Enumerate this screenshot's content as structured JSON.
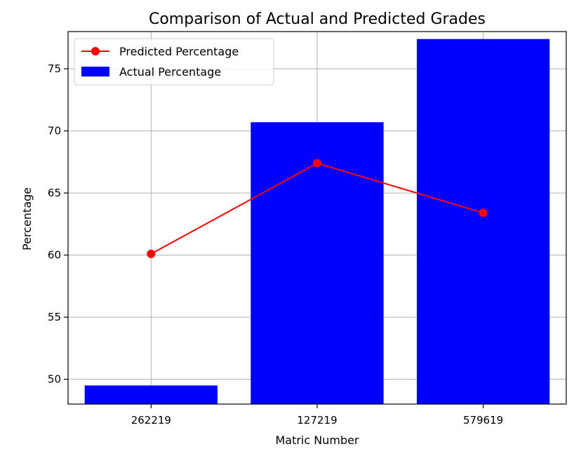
{
  "chart_data": {
    "type": "bar",
    "title": "Comparison of Actual and Predicted Grades",
    "xlabel": "Matric Number",
    "ylabel": "Percentage",
    "categories": [
      "262219",
      "127219",
      "579619"
    ],
    "ylim": [
      48,
      78
    ],
    "yticks": [
      50,
      55,
      60,
      65,
      70,
      75
    ],
    "grid": true,
    "legend_position": "top-left",
    "series": [
      {
        "name": "Predicted Percentage",
        "kind": "line",
        "color": "#ff0000",
        "values": [
          60.1,
          67.4,
          63.4
        ]
      },
      {
        "name": "Actual Percentage",
        "kind": "bar",
        "color": "#0000ff",
        "values": [
          49.5,
          70.7,
          77.4
        ]
      }
    ]
  }
}
